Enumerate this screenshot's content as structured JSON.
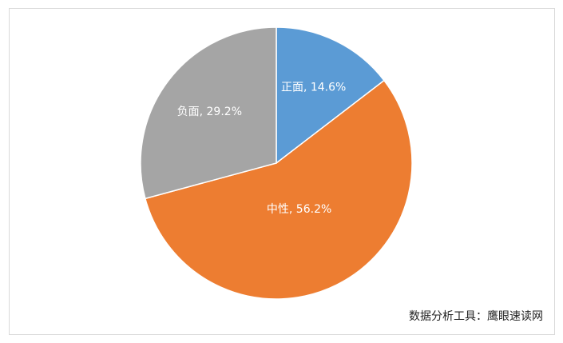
{
  "chart_data": {
    "type": "pie",
    "values": [
      14.6,
      56.2,
      29.2
    ],
    "value_labels": [
      "正面, 14.6%",
      "中性, 56.2%",
      "负面, 29.2%"
    ],
    "colors": [
      "#5b9bd5",
      "#ed7d31",
      "#a5a5a5"
    ],
    "source": "数据分析工具：鹰眼速读网"
  }
}
